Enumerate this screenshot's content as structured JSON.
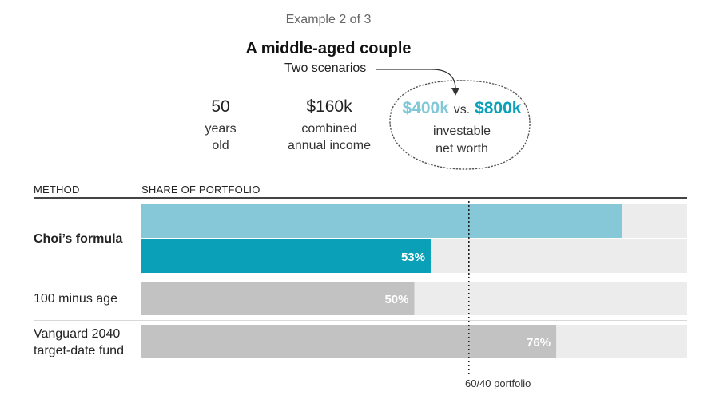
{
  "header": {
    "example_label": "Example 2 of 3",
    "title": "A middle-aged couple",
    "subtitle": "Two scenarios"
  },
  "profile": {
    "age_value": "50",
    "age_label_1": "years",
    "age_label_2": "old",
    "income_value": "$160k",
    "income_label_1": "combined",
    "income_label_2": "annual income",
    "networth_low": "$400k",
    "networth_vs": "vs.",
    "networth_high": "$800k",
    "networth_label_1": "investable",
    "networth_label_2": "net worth"
  },
  "colors": {
    "light_teal": "#86c8d8",
    "dark_teal": "#0aa1b8",
    "gray_bar": "#c2c2c2",
    "track": "#ececec"
  },
  "chart_data": {
    "type": "bar",
    "orientation": "horizontal",
    "column_headers": [
      "METHOD",
      "SHARE OF PORTFOLIO"
    ],
    "xlim": [
      0,
      100
    ],
    "reference_line": {
      "value": 60,
      "label": "60/40 portfolio"
    },
    "rows": [
      {
        "method": "Choi’s formula",
        "bars": [
          {
            "value": 88,
            "label": "",
            "color": "#86c8d8"
          },
          {
            "value": 53,
            "label": "53%",
            "color": "#0aa1b8"
          }
        ]
      },
      {
        "method": "100 minus age",
        "bars": [
          {
            "value": 50,
            "label": "50%",
            "color": "#c2c2c2"
          }
        ]
      },
      {
        "method_lines": [
          "Vanguard 2040",
          "target-date fund"
        ],
        "bars": [
          {
            "value": 76,
            "label": "76%",
            "color": "#c2c2c2"
          }
        ]
      }
    ]
  }
}
